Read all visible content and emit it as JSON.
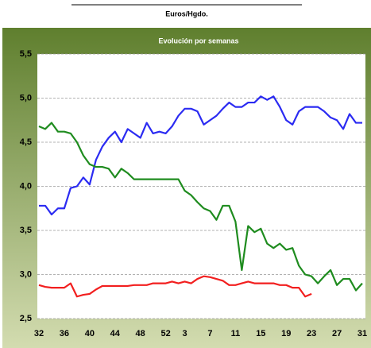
{
  "chart_data": {
    "type": "line",
    "subtitle": "Euros/Hgdo.",
    "title": "Evolución por semanas",
    "categories": [
      "32",
      null,
      null,
      null,
      "36",
      null,
      null,
      null,
      "40",
      null,
      null,
      null,
      "44",
      null,
      null,
      null,
      "48",
      null,
      null,
      null,
      "52",
      null,
      null,
      "3",
      null,
      null,
      null,
      "7",
      null,
      null,
      null,
      "11",
      null,
      null,
      null,
      "15",
      null,
      null,
      null,
      "19",
      null,
      null,
      null,
      "23",
      null,
      null,
      null,
      "27",
      null,
      null,
      null,
      "31"
    ],
    "series": [
      {
        "color": "#2b2bf2",
        "values": [
          3.78,
          3.78,
          3.68,
          3.75,
          3.75,
          3.98,
          4.0,
          4.1,
          4.02,
          4.3,
          4.45,
          4.55,
          4.62,
          4.5,
          4.65,
          4.6,
          4.55,
          4.72,
          4.6,
          4.62,
          4.6,
          4.68,
          4.8,
          4.88,
          4.88,
          4.85,
          4.7,
          4.75,
          4.8,
          4.88,
          4.95,
          4.9,
          4.9,
          4.95,
          4.95,
          5.02,
          4.98,
          5.02,
          4.9,
          4.75,
          4.7,
          4.85,
          4.9,
          4.9,
          4.9,
          4.85,
          4.78,
          4.75,
          4.65,
          4.82,
          4.72,
          4.72
        ]
      },
      {
        "color": "#1f8c1f",
        "values": [
          4.68,
          4.65,
          4.72,
          4.62,
          4.62,
          4.6,
          4.5,
          4.35,
          4.25,
          4.22,
          4.22,
          4.2,
          4.1,
          4.2,
          4.15,
          4.08,
          4.08,
          4.08,
          4.08,
          4.08,
          4.08,
          4.08,
          4.08,
          3.95,
          3.9,
          3.82,
          3.75,
          3.72,
          3.62,
          3.78,
          3.78,
          3.6,
          3.05,
          3.55,
          3.48,
          3.52,
          3.35,
          3.3,
          3.35,
          3.28,
          3.3,
          3.1,
          3.0,
          2.98,
          2.9,
          2.98,
          3.05,
          2.88,
          2.95,
          2.95,
          2.82,
          2.9
        ]
      },
      {
        "color": "#f21f1f",
        "values": [
          2.88,
          2.86,
          2.85,
          2.85,
          2.85,
          2.9,
          2.75,
          2.77,
          2.78,
          2.83,
          2.87,
          2.87,
          2.87,
          2.87,
          2.87,
          2.88,
          2.88,
          2.88,
          2.9,
          2.9,
          2.9,
          2.92,
          2.9,
          2.92,
          2.9,
          2.95,
          2.98,
          2.97,
          2.95,
          2.93,
          2.88,
          2.88,
          2.9,
          2.92,
          2.9,
          2.9,
          2.9,
          2.9,
          2.88,
          2.88,
          2.85,
          2.85,
          2.75,
          2.78,
          null,
          null,
          null,
          null,
          null,
          null,
          null,
          null
        ]
      }
    ],
    "ylim": [
      2.5,
      5.5
    ],
    "yticks": [
      {
        "value": 2.5,
        "label": "2,5"
      },
      {
        "value": 3.0,
        "label": "3,0"
      },
      {
        "value": 3.5,
        "label": "3,5"
      },
      {
        "value": 4.0,
        "label": "4,0"
      },
      {
        "value": 4.5,
        "label": "4,5"
      },
      {
        "value": 5.0,
        "label": "5,0"
      },
      {
        "value": 5.5,
        "label": "5,5"
      }
    ],
    "grid": true
  }
}
